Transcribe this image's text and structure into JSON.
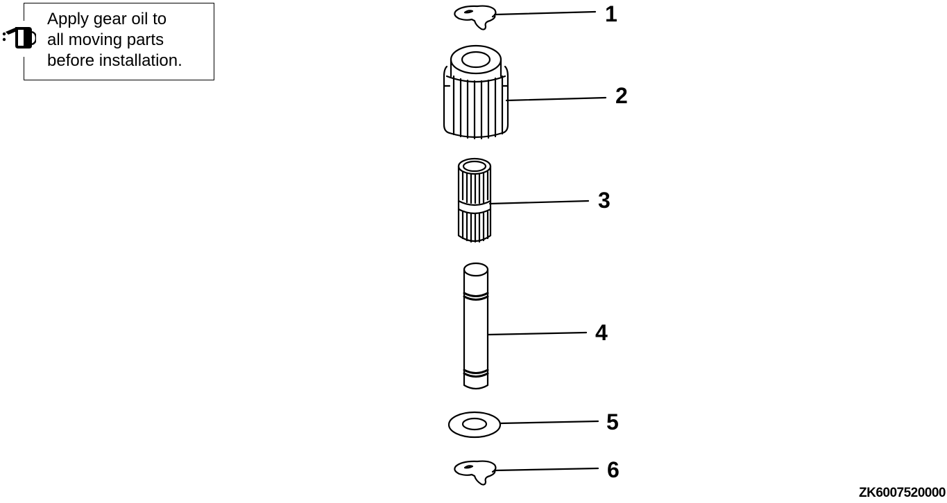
{
  "note": {
    "text": "Apply gear oil to\nall moving parts\nbefore installation.",
    "icon": "oil-can-icon"
  },
  "callouts": [
    {
      "number": "1",
      "part": "snap-ring"
    },
    {
      "number": "2",
      "part": "gear"
    },
    {
      "number": "3",
      "part": "needle-bearing"
    },
    {
      "number": "4",
      "part": "shaft"
    },
    {
      "number": "5",
      "part": "washer"
    },
    {
      "number": "6",
      "part": "snap-ring"
    }
  ],
  "figure_id": "ZK6007520000"
}
